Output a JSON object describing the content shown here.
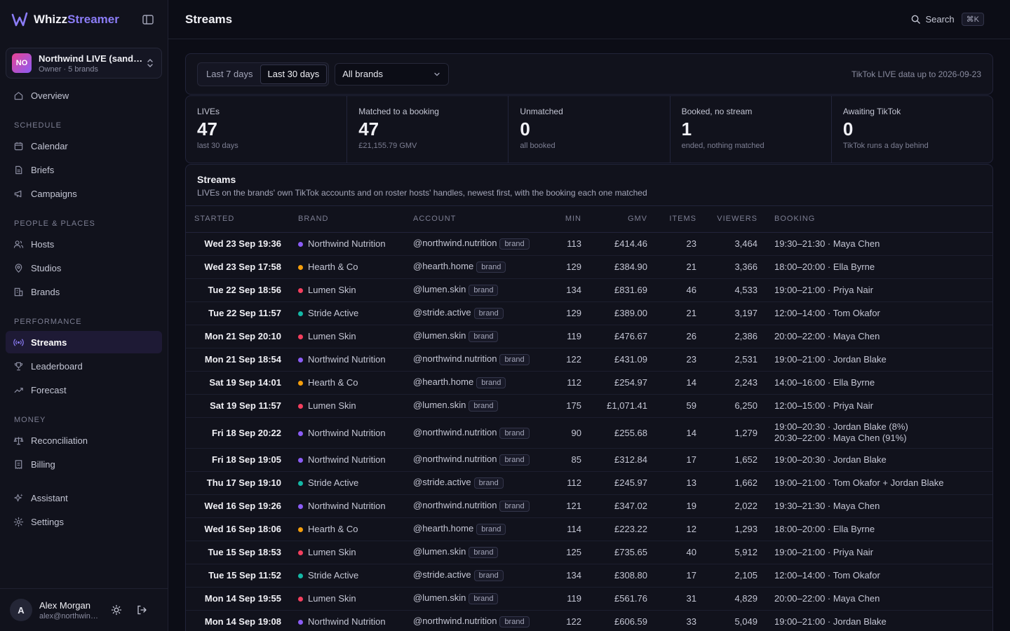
{
  "app": {
    "name_part1": "Whizz",
    "name_part2": "Streamer"
  },
  "workspace": {
    "initials": "NO",
    "name": "Northwind LIVE (sandbox)",
    "sub": "Owner · 5 brands"
  },
  "nav": {
    "overview": "Overview",
    "schedule_label": "SCHEDULE",
    "calendar": "Calendar",
    "briefs": "Briefs",
    "campaigns": "Campaigns",
    "people_label": "PEOPLE & PLACES",
    "hosts": "Hosts",
    "studios": "Studios",
    "brands": "Brands",
    "performance_label": "PERFORMANCE",
    "streams": "Streams",
    "leaderboard": "Leaderboard",
    "forecast": "Forecast",
    "money_label": "MONEY",
    "reconciliation": "Reconciliation",
    "billing": "Billing",
    "assistant": "Assistant",
    "settings": "Settings"
  },
  "user": {
    "initial": "A",
    "name": "Alex Morgan",
    "email": "alex@northwind.example"
  },
  "header": {
    "title": "Streams",
    "search_label": "Search",
    "shortcut": "⌘K"
  },
  "filters": {
    "range_7": "Last 7 days",
    "range_30": "Last 30 days",
    "brand": "All brands",
    "data_note": "TikTok LIVE data up to 2026-09-23"
  },
  "stats": [
    {
      "label": "LIVEs",
      "value": "47",
      "sub": "last 30 days"
    },
    {
      "label": "Matched to a booking",
      "value": "47",
      "sub": "£21,155.79 GMV"
    },
    {
      "label": "Unmatched",
      "value": "0",
      "sub": "all booked"
    },
    {
      "label": "Booked, no stream",
      "value": "1",
      "sub": "ended, nothing matched"
    },
    {
      "label": "Awaiting TikTok",
      "value": "0",
      "sub": "TikTok runs a day behind"
    }
  ],
  "table": {
    "title": "Streams",
    "description": "LIVEs on the brands' own TikTok accounts and on roster hosts' handles, newest first, with the booking each one matched",
    "columns": {
      "started": "Started",
      "brand": "Brand",
      "account": "Account",
      "min": "Min",
      "gmv": "GMV",
      "items": "Items",
      "viewers": "Viewers",
      "booking": "Booking"
    },
    "brand_colors": {
      "Northwind Nutrition": "#8b5cf6",
      "Hearth & Co": "#f59e0b",
      "Lumen Skin": "#f43f5e",
      "Stride Active": "#14b8a6"
    },
    "rows": [
      {
        "started": "Wed 23 Sep 19:36",
        "brand": "Northwind Nutrition",
        "account": "@northwind.nutrition",
        "tag": "brand",
        "min": "113",
        "gmv": "£414.46",
        "items": "23",
        "viewers": "3,464",
        "booking": "19:30–21:30 · Maya Chen",
        "booking2": ""
      },
      {
        "started": "Wed 23 Sep 17:58",
        "brand": "Hearth & Co",
        "account": "@hearth.home",
        "tag": "brand",
        "min": "129",
        "gmv": "£384.90",
        "items": "21",
        "viewers": "3,366",
        "booking": "18:00–20:00 · Ella Byrne",
        "booking2": ""
      },
      {
        "started": "Tue 22 Sep 18:56",
        "brand": "Lumen Skin",
        "account": "@lumen.skin",
        "tag": "brand",
        "min": "134",
        "gmv": "£831.69",
        "items": "46",
        "viewers": "4,533",
        "booking": "19:00–21:00 · Priya Nair",
        "booking2": ""
      },
      {
        "started": "Tue 22 Sep 11:57",
        "brand": "Stride Active",
        "account": "@stride.active",
        "tag": "brand",
        "min": "129",
        "gmv": "£389.00",
        "items": "21",
        "viewers": "3,197",
        "booking": "12:00–14:00 · Tom Okafor",
        "booking2": ""
      },
      {
        "started": "Mon 21 Sep 20:10",
        "brand": "Lumen Skin",
        "account": "@lumen.skin",
        "tag": "brand",
        "min": "119",
        "gmv": "£476.67",
        "items": "26",
        "viewers": "2,386",
        "booking": "20:00–22:00 · Maya Chen",
        "booking2": ""
      },
      {
        "started": "Mon 21 Sep 18:54",
        "brand": "Northwind Nutrition",
        "account": "@northwind.nutrition",
        "tag": "brand",
        "min": "122",
        "gmv": "£431.09",
        "items": "23",
        "viewers": "2,531",
        "booking": "19:00–21:00 · Jordan Blake",
        "booking2": ""
      },
      {
        "started": "Sat 19 Sep 14:01",
        "brand": "Hearth & Co",
        "account": "@hearth.home",
        "tag": "brand",
        "min": "112",
        "gmv": "£254.97",
        "items": "14",
        "viewers": "2,243",
        "booking": "14:00–16:00 · Ella Byrne",
        "booking2": ""
      },
      {
        "started": "Sat 19 Sep 11:57",
        "brand": "Lumen Skin",
        "account": "@lumen.skin",
        "tag": "brand",
        "min": "175",
        "gmv": "£1,071.41",
        "items": "59",
        "viewers": "6,250",
        "booking": "12:00–15:00 · Priya Nair",
        "booking2": ""
      },
      {
        "started": "Fri 18 Sep 20:22",
        "brand": "Northwind Nutrition",
        "account": "@northwind.nutrition",
        "tag": "brand",
        "min": "90",
        "gmv": "£255.68",
        "items": "14",
        "viewers": "1,279",
        "booking": "19:00–20:30 · Jordan Blake (8%)",
        "booking2": "20:30–22:00 · Maya Chen (91%)"
      },
      {
        "started": "Fri 18 Sep 19:05",
        "brand": "Northwind Nutrition",
        "account": "@northwind.nutrition",
        "tag": "brand",
        "min": "85",
        "gmv": "£312.84",
        "items": "17",
        "viewers": "1,652",
        "booking": "19:00–20:30 · Jordan Blake",
        "booking2": ""
      },
      {
        "started": "Thu 17 Sep 19:10",
        "brand": "Stride Active",
        "account": "@stride.active",
        "tag": "brand",
        "min": "112",
        "gmv": "£245.97",
        "items": "13",
        "viewers": "1,662",
        "booking": "19:00–21:00 · Tom Okafor + Jordan Blake",
        "booking2": ""
      },
      {
        "started": "Wed 16 Sep 19:26",
        "brand": "Northwind Nutrition",
        "account": "@northwind.nutrition",
        "tag": "brand",
        "min": "121",
        "gmv": "£347.02",
        "items": "19",
        "viewers": "2,022",
        "booking": "19:30–21:30 · Maya Chen",
        "booking2": ""
      },
      {
        "started": "Wed 16 Sep 18:06",
        "brand": "Hearth & Co",
        "account": "@hearth.home",
        "tag": "brand",
        "min": "114",
        "gmv": "£223.22",
        "items": "12",
        "viewers": "1,293",
        "booking": "18:00–20:00 · Ella Byrne",
        "booking2": ""
      },
      {
        "started": "Tue 15 Sep 18:53",
        "brand": "Lumen Skin",
        "account": "@lumen.skin",
        "tag": "brand",
        "min": "125",
        "gmv": "£735.65",
        "items": "40",
        "viewers": "5,912",
        "booking": "19:00–21:00 · Priya Nair",
        "booking2": ""
      },
      {
        "started": "Tue 15 Sep 11:52",
        "brand": "Stride Active",
        "account": "@stride.active",
        "tag": "brand",
        "min": "134",
        "gmv": "£308.80",
        "items": "17",
        "viewers": "2,105",
        "booking": "12:00–14:00 · Tom Okafor",
        "booking2": ""
      },
      {
        "started": "Mon 14 Sep 19:55",
        "brand": "Lumen Skin",
        "account": "@lumen.skin",
        "tag": "brand",
        "min": "119",
        "gmv": "£561.76",
        "items": "31",
        "viewers": "4,829",
        "booking": "20:00–22:00 · Maya Chen",
        "booking2": ""
      },
      {
        "started": "Mon 14 Sep 19:08",
        "brand": "Northwind Nutrition",
        "account": "@northwind.nutrition",
        "tag": "brand",
        "min": "122",
        "gmv": "£606.59",
        "items": "33",
        "viewers": "5,049",
        "booking": "19:00–21:00 · Jordan Blake",
        "booking2": ""
      }
    ]
  },
  "colors": {
    "accent": "#8b7cf6",
    "background": "#0c0d16",
    "sidebar": "#11121c",
    "active_nav": "#1e1a35"
  }
}
